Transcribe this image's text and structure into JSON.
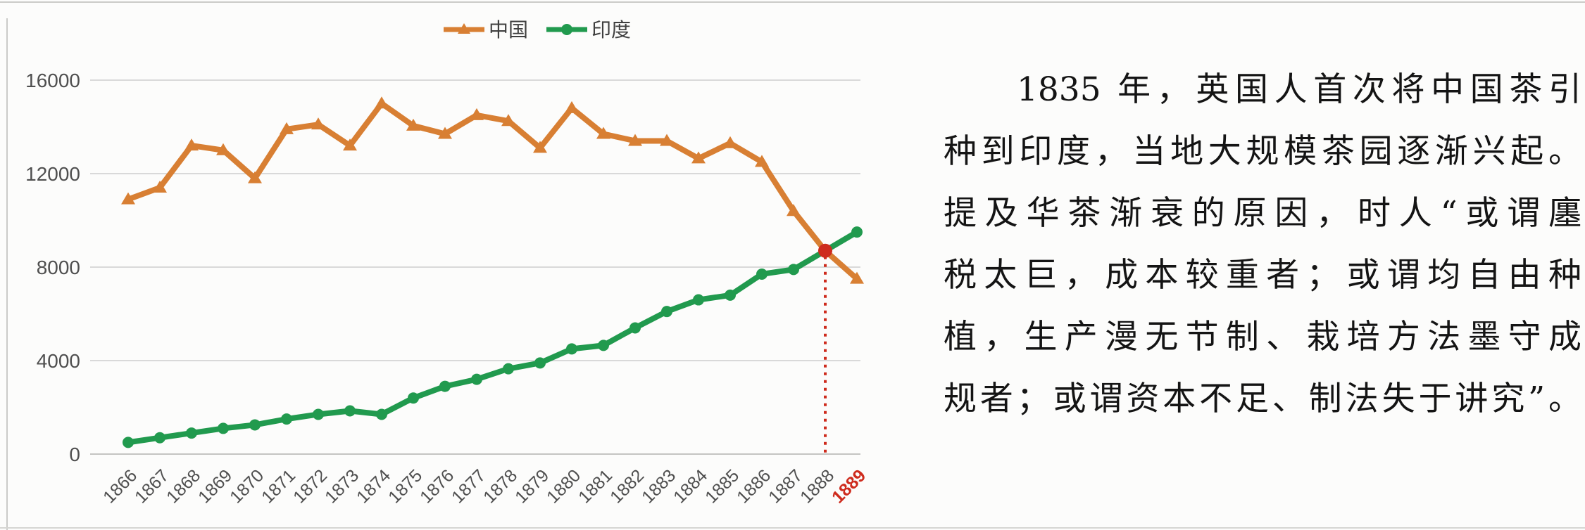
{
  "page": {
    "background": "#fcfcfb",
    "border_color": "#cbcbc8"
  },
  "chart_data": {
    "type": "line",
    "title": "",
    "xlabel": "",
    "ylabel": "",
    "grid": true,
    "legend_position": "top-center",
    "ylim": [
      0,
      16000
    ],
    "yticks": [
      0,
      4000,
      8000,
      12000,
      16000
    ],
    "ytick_labels": [
      "0",
      "4000",
      "8000",
      "12000",
      "16000"
    ],
    "categories": [
      "1866",
      "1867",
      "1868",
      "1869",
      "1870",
      "1871",
      "1872",
      "1873",
      "1874",
      "1875",
      "1876",
      "1877",
      "1878",
      "1879",
      "1880",
      "1881",
      "1882",
      "1883",
      "1884",
      "1885",
      "1886",
      "1887",
      "1888",
      "1889"
    ],
    "series": [
      {
        "name": "中国",
        "color": "#d87f33",
        "marker": "triangle",
        "values": [
          10900,
          11400,
          13200,
          13000,
          11800,
          13900,
          14100,
          13200,
          15000,
          14050,
          13700,
          14500,
          14250,
          13100,
          14800,
          13700,
          13400,
          13400,
          12650,
          13300,
          12500,
          10400,
          8700,
          7500
        ]
      },
      {
        "name": "印度",
        "color": "#219a4e",
        "marker": "circle",
        "values": [
          500,
          700,
          900,
          1100,
          1250,
          1500,
          1700,
          1850,
          1700,
          2400,
          2900,
          3200,
          3650,
          3900,
          4500,
          4650,
          5400,
          6100,
          6600,
          6800,
          7700,
          7900,
          8700,
          9500
        ]
      }
    ],
    "annotation": {
      "style": "dotted-vertical-line-with-marker",
      "marker_category": "1888",
      "marker_category_index": 22,
      "marker_value": 8700,
      "highlight_tick": "1889",
      "color": "#ce2b1d"
    },
    "axis_text_color": "#4f4f4f",
    "gridline_color": "#d9d9d9"
  },
  "passage": {
    "lines": [
      "1835 年，英国人首次将中国茶引",
      "种到印度，当地大规模茶园逐渐兴起。",
      "提及华茶渐衰的原因，时人“或谓廛",
      "税太巨，成本较重者；或谓均自由种",
      "植，生产漫无节制、栽培方法墨守成",
      "规者；或谓资本不足、制法失于讲究”。"
    ]
  }
}
